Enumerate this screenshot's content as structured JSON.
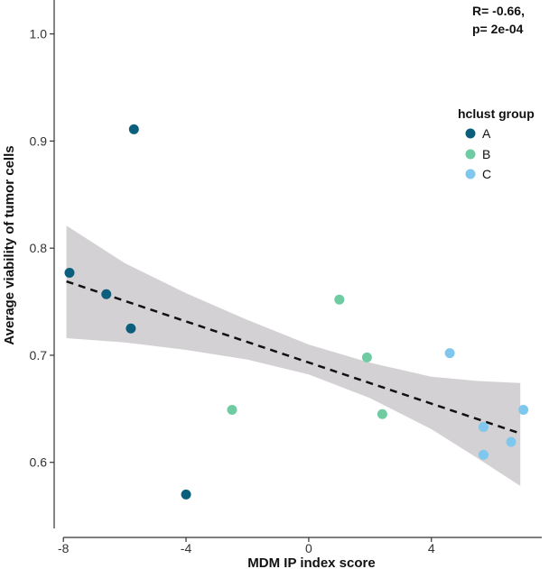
{
  "chart_data": {
    "type": "scatter",
    "xlabel": "MDM IP index score",
    "ylabel": "Average viability of tumor cells",
    "xlim": [
      -8.3,
      7.6
    ],
    "ylim": [
      0.54,
      1.03
    ],
    "x_ticks": [
      -8,
      -4,
      0,
      4
    ],
    "x_tick_labels": [
      "-8",
      "-4",
      "0",
      "4"
    ],
    "y_ticks": [
      0.6,
      0.7,
      0.8,
      0.9,
      1.0
    ],
    "y_tick_labels": [
      "0.6",
      "0.7",
      "0.8",
      "0.9",
      "1.0"
    ],
    "grid": false,
    "stats": {
      "r_text": "R= -0.66,",
      "p_text": "p= 2e-04"
    },
    "legend": {
      "title": "hclust group",
      "position": "right",
      "entries": [
        {
          "label": "A",
          "color": "#0b5f7c"
        },
        {
          "label": "B",
          "color": "#6fcba2"
        },
        {
          "label": "C",
          "color": "#7fc7ec"
        }
      ]
    },
    "series": [
      {
        "name": "A",
        "color": "#0b5f7c",
        "points": [
          {
            "x": -7.8,
            "y": 0.777
          },
          {
            "x": -6.6,
            "y": 0.757
          },
          {
            "x": -5.8,
            "y": 0.725
          },
          {
            "x": -5.7,
            "y": 0.911
          },
          {
            "x": -4.0,
            "y": 0.57
          }
        ]
      },
      {
        "name": "B",
        "color": "#6fcba2",
        "points": [
          {
            "x": -2.5,
            "y": 0.649
          },
          {
            "x": 1.0,
            "y": 0.752
          },
          {
            "x": 1.9,
            "y": 0.698
          },
          {
            "x": 2.4,
            "y": 0.645
          }
        ]
      },
      {
        "name": "C",
        "color": "#7fc7ec",
        "points": [
          {
            "x": 4.6,
            "y": 0.702
          },
          {
            "x": 5.7,
            "y": 0.633
          },
          {
            "x": 5.7,
            "y": 0.607
          },
          {
            "x": 6.6,
            "y": 0.619
          },
          {
            "x": 7.0,
            "y": 0.649
          }
        ]
      }
    ],
    "regression": {
      "style": "dashed",
      "color": "#111111",
      "start": {
        "x": -7.9,
        "y": 0.769
      },
      "end": {
        "x": 6.9,
        "y": 0.627
      },
      "ci_band_color": "#d3d1d3",
      "ci_band": [
        {
          "x": -7.9,
          "upper": 0.821,
          "lower": 0.716
        },
        {
          "x": -6.0,
          "upper": 0.786,
          "lower": 0.712
        },
        {
          "x": -4.0,
          "upper": 0.758,
          "lower": 0.705
        },
        {
          "x": -2.0,
          "upper": 0.733,
          "lower": 0.696
        },
        {
          "x": 0.0,
          "upper": 0.71,
          "lower": 0.682
        },
        {
          "x": 2.0,
          "upper": 0.693,
          "lower": 0.66
        },
        {
          "x": 4.0,
          "upper": 0.68,
          "lower": 0.631
        },
        {
          "x": 5.5,
          "upper": 0.676,
          "lower": 0.604
        },
        {
          "x": 6.9,
          "upper": 0.674,
          "lower": 0.578
        }
      ]
    }
  }
}
